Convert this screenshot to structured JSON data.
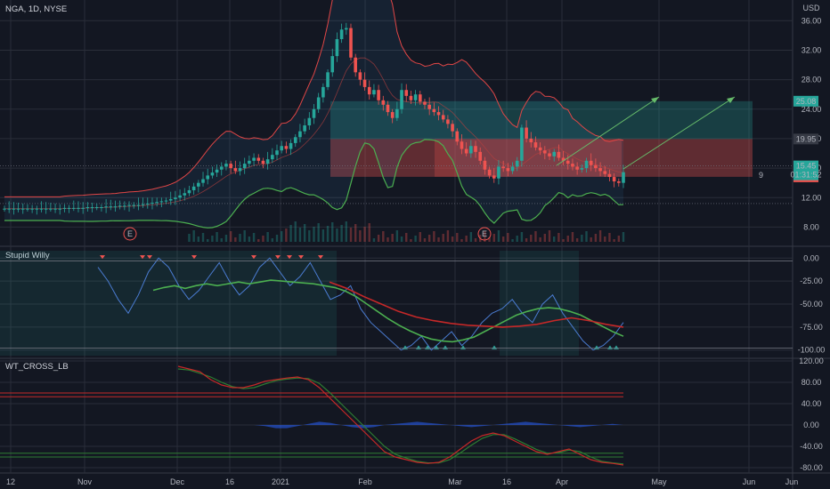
{
  "header": {
    "symbol_label": "NGA, 1D, NYSE",
    "currency": "USD"
  },
  "colors": {
    "bg": "#131722",
    "grid": "#2a2e39",
    "up": "#26a69a",
    "down": "#ef5350",
    "text": "#b2b5be"
  },
  "markers": {
    "earnings": "E",
    "count_label": "9"
  },
  "price_labels": {
    "target": "25.08",
    "stop": "19.95",
    "last": "15.45",
    "countdown": "01:31:52",
    "entry": "14.82"
  },
  "x_labels": [
    "12",
    "Nov",
    "Dec",
    "16",
    "2021",
    "Feb",
    "Mar",
    "16",
    "Apr",
    "May",
    "Jun",
    "Jun"
  ],
  "chart_data": [
    {
      "type": "candlestick",
      "title": "NGA, 1D, NYSE",
      "y_ticks": [
        "36.00",
        "32.00",
        "28.00",
        "24.00",
        "20.00",
        "16.00",
        "12.00",
        "8.00"
      ],
      "ylim": [
        6,
        37
      ],
      "x_tick_labels": [
        "12",
        "Nov",
        "Dec",
        "16",
        "2021",
        "Feb",
        "Mar",
        "16",
        "Apr",
        "May",
        "Jun"
      ],
      "close": [
        10.5,
        10.5,
        10.5,
        10.5,
        10.5,
        10.5,
        10.5,
        10.5,
        10.5,
        10.5,
        10.5,
        10.5,
        10.5,
        10.6,
        10.6,
        10.6,
        10.6,
        10.6,
        10.7,
        10.7,
        10.7,
        10.7,
        10.8,
        10.8,
        10.8,
        10.9,
        10.9,
        11.0,
        11.0,
        11.0,
        11.1,
        11.2,
        11.3,
        11.4,
        11.5,
        11.6,
        11.8,
        12.0,
        12.3,
        12.6,
        13.0,
        13.5,
        14.0,
        14.5,
        15.0,
        15.4,
        15.8,
        16.2,
        16.6,
        16.0,
        15.6,
        16.0,
        16.6,
        17.0,
        17.4,
        17.0,
        16.6,
        17.2,
        17.8,
        18.4,
        19.0,
        18.6,
        19.4,
        20.2,
        21.0,
        21.8,
        22.8,
        24.0,
        25.6,
        27.0,
        29.0,
        31.2,
        33.5,
        34.8,
        35.0,
        31.0,
        29.0,
        28.0,
        27.0,
        26.0,
        26.6,
        25.2,
        24.6,
        23.6,
        22.8,
        24.0,
        26.6,
        25.8,
        25.2,
        26.0,
        25.0,
        24.6,
        24.0,
        23.6,
        23.2,
        22.6,
        22.0,
        21.0,
        19.6,
        18.6,
        18.0,
        19.0,
        18.2,
        17.0,
        15.8,
        15.0,
        14.6,
        16.2,
        16.0,
        15.6,
        16.2,
        17.0,
        21.5,
        20.0,
        19.5,
        18.8,
        18.4,
        18.0,
        17.6,
        18.2,
        17.4,
        17.0,
        16.6,
        16.2,
        15.8,
        16.0,
        17.0,
        16.4,
        16.0,
        15.6,
        15.2,
        14.8,
        14.2,
        14.0,
        15.45
      ],
      "indicators": [
        "upper band",
        "middle band",
        "lower band"
      ],
      "zones": [
        {
          "kind": "target",
          "top": 25.08,
          "bottom": 19.95
        },
        {
          "kind": "stop",
          "top": 19.95,
          "bottom": 14.82
        }
      ],
      "projection_lines": [
        {
          "from": 16,
          "to": 25.08
        },
        {
          "from": 15.2,
          "to": 25.08
        }
      ],
      "grid": true
    },
    {
      "type": "line",
      "title": "Stupid Willy",
      "y_ticks": [
        "0.00",
        "-25.00",
        "-50.00",
        "-75.00",
        "-100.00"
      ],
      "ylim": [
        -108,
        8
      ],
      "series": [
        {
          "values": [
            -10,
            -25,
            -45,
            -60,
            -40,
            -15,
            0,
            -10,
            -30,
            -45,
            -35,
            -20,
            -5,
            -25,
            -40,
            -30,
            -10,
            0,
            -15,
            -30,
            -20,
            -5,
            -25,
            -45,
            -40,
            -30,
            -55,
            -70,
            -80,
            -90,
            -100,
            -95,
            -85,
            -100,
            -90,
            -80,
            -95,
            -85,
            -70,
            -60,
            -55,
            -45,
            -60,
            -70,
            -50,
            -40,
            -60,
            -75,
            -90,
            -100,
            -95,
            -85,
            -70
          ]
        },
        {
          "values": [
            -35,
            -32,
            -30,
            -33,
            -30,
            -28,
            -30,
            -28,
            -26,
            -28,
            -26,
            -24,
            -25,
            -26,
            -27,
            -28,
            -30,
            -32,
            -36,
            -42,
            -50,
            -58,
            -66,
            -73,
            -79,
            -84,
            -88,
            -90,
            -91,
            -89,
            -86,
            -80,
            -74,
            -68,
            -62,
            -58,
            -55,
            -54,
            -55,
            -58,
            -62,
            -68,
            -74,
            -80,
            -85
          ]
        },
        {
          "values": [
            -26,
            -33,
            -42,
            -50,
            -58,
            -64,
            -68,
            -71,
            -73,
            -74,
            -75,
            -74,
            -72,
            -68,
            -65,
            -68,
            -72,
            -75
          ]
        }
      ],
      "grid": true
    },
    {
      "type": "line",
      "title": "WT_CROSS_LB",
      "y_ticks": [
        "120.00",
        "80.00",
        "40.00",
        "0.00",
        "-40.00",
        "-80.00"
      ],
      "ylim": [
        -90,
        125
      ],
      "levels": [
        60,
        53,
        -53,
        -60
      ],
      "series": [
        {
          "values": [
            110,
            105,
            100,
            85,
            75,
            70,
            70,
            75,
            82,
            85,
            88,
            90,
            85,
            70,
            50,
            30,
            10,
            -10,
            -30,
            -50,
            -60,
            -65,
            -70,
            -72,
            -70,
            -60,
            -45,
            -30,
            -20,
            -15,
            -20,
            -30,
            -40,
            -50,
            -55,
            -50,
            -45,
            -55,
            -65,
            -70,
            -72,
            -75
          ]
        },
        {
          "values": [
            105,
            103,
            97,
            90,
            80,
            72,
            68,
            70,
            77,
            83,
            86,
            88,
            87,
            78,
            60,
            40,
            20,
            0,
            -20,
            -40,
            -55,
            -62,
            -68,
            -71,
            -71,
            -65,
            -52,
            -38,
            -25,
            -18,
            -18,
            -26,
            -36,
            -46,
            -53,
            -52,
            -47,
            -50,
            -60,
            -68,
            -71,
            -73
          ]
        },
        {
          "values": [
            0,
            0,
            0,
            0,
            0,
            0,
            0,
            0,
            -2,
            -6,
            -6,
            -2,
            2,
            6,
            4,
            0,
            -4,
            -6,
            -4,
            0,
            2,
            4,
            6,
            4,
            2,
            0,
            -2,
            -4,
            -2,
            0,
            2,
            4,
            6,
            4,
            2,
            0,
            -2,
            -4,
            -2,
            0,
            2,
            0
          ]
        }
      ],
      "grid": true
    }
  ]
}
